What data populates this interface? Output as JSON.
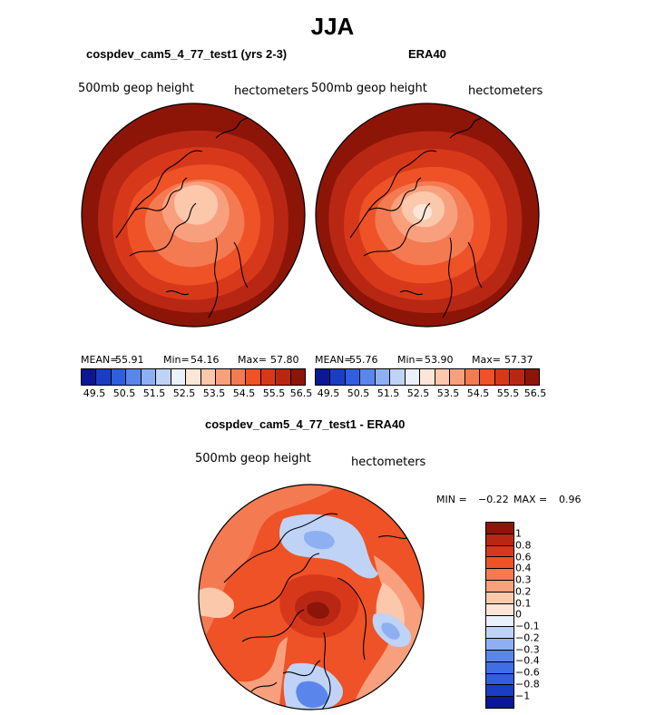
{
  "title": "JJA",
  "panels": [
    {
      "title": "cospdev_cam5_4_77_test1 (yrs 2-3)",
      "variable": "500mb geop height",
      "units": "hectometers",
      "stats": {
        "mean_label": "MEAN=",
        "mean": "55.91",
        "min_label": "Min=",
        "min": "54.16",
        "max_label": "Max=",
        "max": "57.80"
      }
    },
    {
      "title": "ERA40",
      "variable": "500mb geop height",
      "units": "hectometers",
      "stats": {
        "mean_label": "MEAN=",
        "mean": "55.76",
        "min_label": "Min=",
        "min": "53.90",
        "max_label": "Max=",
        "max": "57.37"
      }
    }
  ],
  "colorbar": {
    "colors": [
      "#0a1896",
      "#1b3dc4",
      "#2f5ee0",
      "#5a86ec",
      "#8eb0f2",
      "#bfd3f7",
      "#eaf1fc",
      "#fde6d8",
      "#fbc8ac",
      "#f8a07e",
      "#f47a52",
      "#ee5226",
      "#d8381a",
      "#b82713",
      "#8c1508"
    ],
    "labels": [
      "49.5",
      "50.5",
      "51.5",
      "52.5",
      "53.5",
      "54.5",
      "55.5",
      "56.5"
    ]
  },
  "difference": {
    "title": "cospdev_cam5_4_77_test1 - ERA40",
    "variable": "500mb geop height",
    "units": "hectometers",
    "min_label": "MIN =",
    "min": "−0.22",
    "max_label": "MAX =",
    "max": "0.96",
    "colorbar": {
      "colors": [
        "#8c1508",
        "#b82713",
        "#d8381a",
        "#ee5226",
        "#f47a52",
        "#f8a07e",
        "#fbc8ac",
        "#fde6d8",
        "#eaf1fc",
        "#bfd3f7",
        "#8eb0f2",
        "#5a86ec",
        "#3f6ee6",
        "#2f5ee0",
        "#1b3dc4",
        "#0a1896"
      ],
      "labels": [
        "1",
        "0.8",
        "0.6",
        "0.4",
        "0.3",
        "0.2",
        "0.1",
        "0",
        "−0.1",
        "−0.2",
        "−0.3",
        "−0.4",
        "−0.6",
        "−0.8",
        "−1"
      ]
    }
  }
}
